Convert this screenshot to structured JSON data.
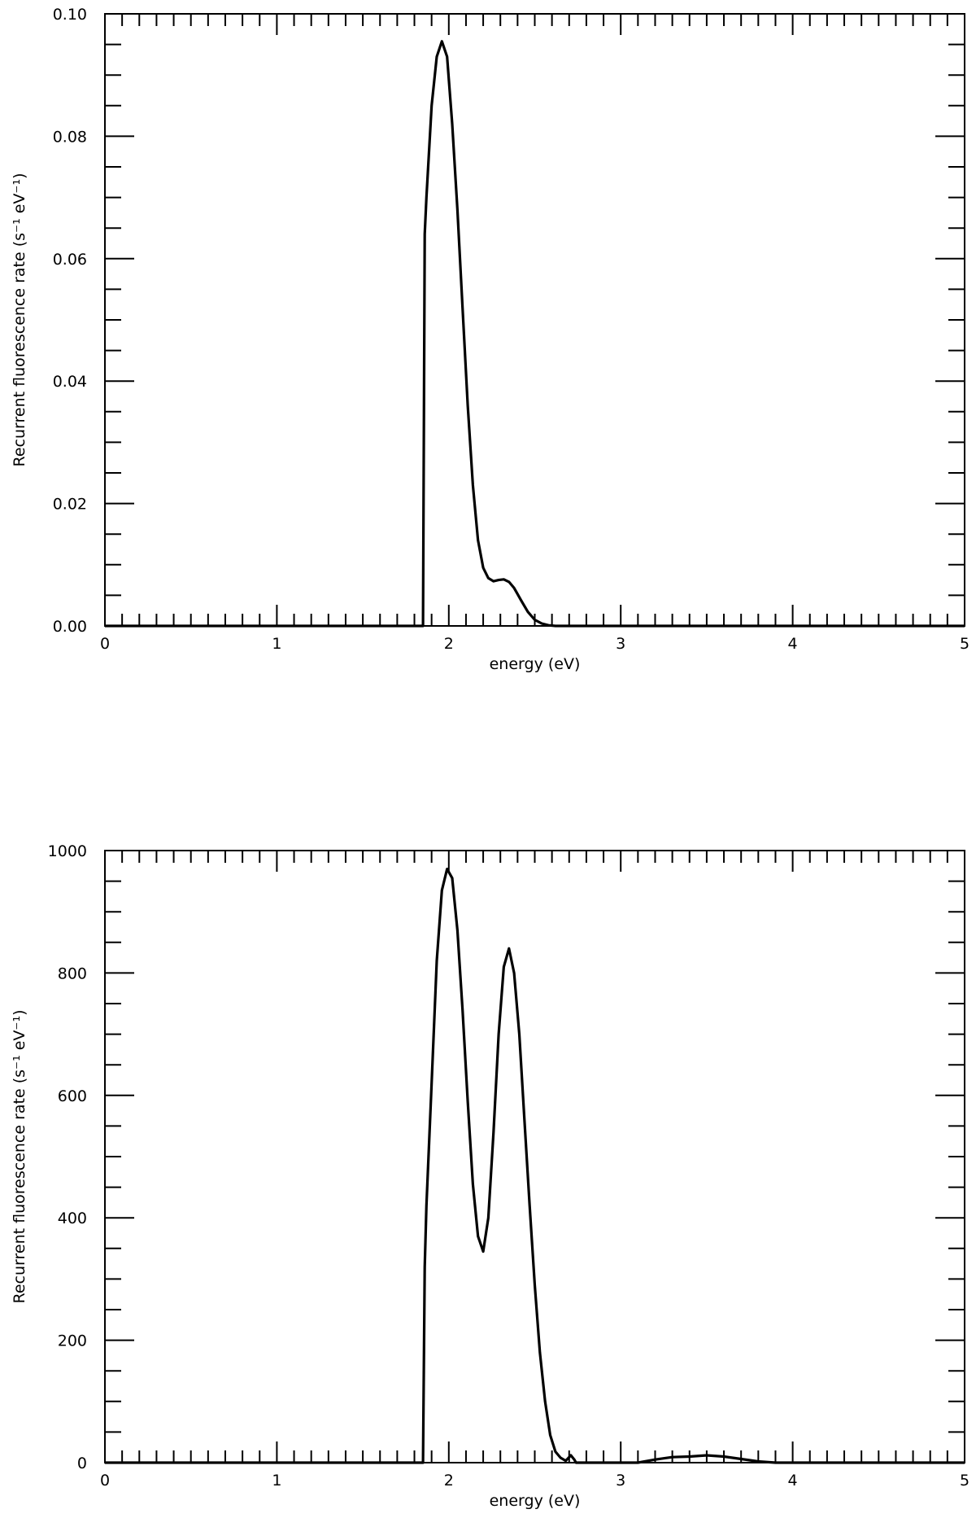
{
  "chart_data": [
    {
      "type": "line",
      "xlabel": "energy (eV)",
      "ylabel": "Recurrent fluorescence rate (s⁻¹ eV⁻¹)",
      "xlim": [
        0,
        5
      ],
      "ylim": [
        0,
        0.1
      ],
      "x_ticks": [
        "0",
        "1",
        "2",
        "3",
        "4",
        "5"
      ],
      "y_ticks": [
        "0.00",
        "0.02",
        "0.04",
        "0.06",
        "0.08",
        "0.10"
      ],
      "grid": false,
      "series": [
        {
          "x": [
            0,
            1.85,
            1.86,
            1.87,
            1.9,
            1.93,
            1.96,
            1.99,
            2.02,
            2.05,
            2.08,
            2.11,
            2.14,
            2.17,
            2.2,
            2.23,
            2.26,
            2.29,
            2.32,
            2.35,
            2.38,
            2.42,
            2.46,
            2.5,
            2.54,
            2.58,
            2.62,
            2.7,
            5
          ],
          "y": [
            0,
            0,
            0.064,
            0.07,
            0.085,
            0.093,
            0.0955,
            0.093,
            0.082,
            0.068,
            0.052,
            0.036,
            0.023,
            0.014,
            0.0095,
            0.0078,
            0.0073,
            0.0075,
            0.0076,
            0.0072,
            0.0062,
            0.0042,
            0.0023,
            0.001,
            0.0004,
            0.0001,
            0,
            0,
            0
          ]
        }
      ]
    },
    {
      "type": "line",
      "xlabel": "energy (eV)",
      "ylabel": "Recurrent fluorescence rate (s⁻¹ eV⁻¹)",
      "xlim": [
        0,
        5
      ],
      "ylim": [
        0,
        1000
      ],
      "x_ticks": [
        "0",
        "1",
        "2",
        "3",
        "4",
        "5"
      ],
      "y_ticks": [
        "0",
        "200",
        "400",
        "600",
        "800",
        "1000"
      ],
      "grid": false,
      "series": [
        {
          "x": [
            0,
            1.85,
            1.86,
            1.87,
            1.9,
            1.93,
            1.96,
            1.99,
            2.02,
            2.05,
            2.08,
            2.11,
            2.14,
            2.17,
            2.2,
            2.23,
            2.26,
            2.29,
            2.32,
            2.35,
            2.38,
            2.41,
            2.44,
            2.47,
            2.5,
            2.53,
            2.56,
            2.59,
            2.62,
            2.65,
            2.68,
            2.71,
            2.73,
            2.74,
            3.1,
            3.2,
            3.3,
            3.4,
            3.5,
            3.6,
            3.7,
            3.8,
            3.9,
            5
          ],
          "y": [
            0,
            0,
            320,
            420,
            620,
            820,
            935,
            970,
            955,
            870,
            740,
            590,
            455,
            370,
            345,
            400,
            540,
            700,
            810,
            840,
            800,
            700,
            560,
            420,
            290,
            180,
            100,
            45,
            18,
            8,
            3,
            12,
            5,
            0,
            0,
            5,
            9,
            10,
            12,
            10,
            6,
            2,
            0,
            0
          ]
        }
      ]
    }
  ]
}
